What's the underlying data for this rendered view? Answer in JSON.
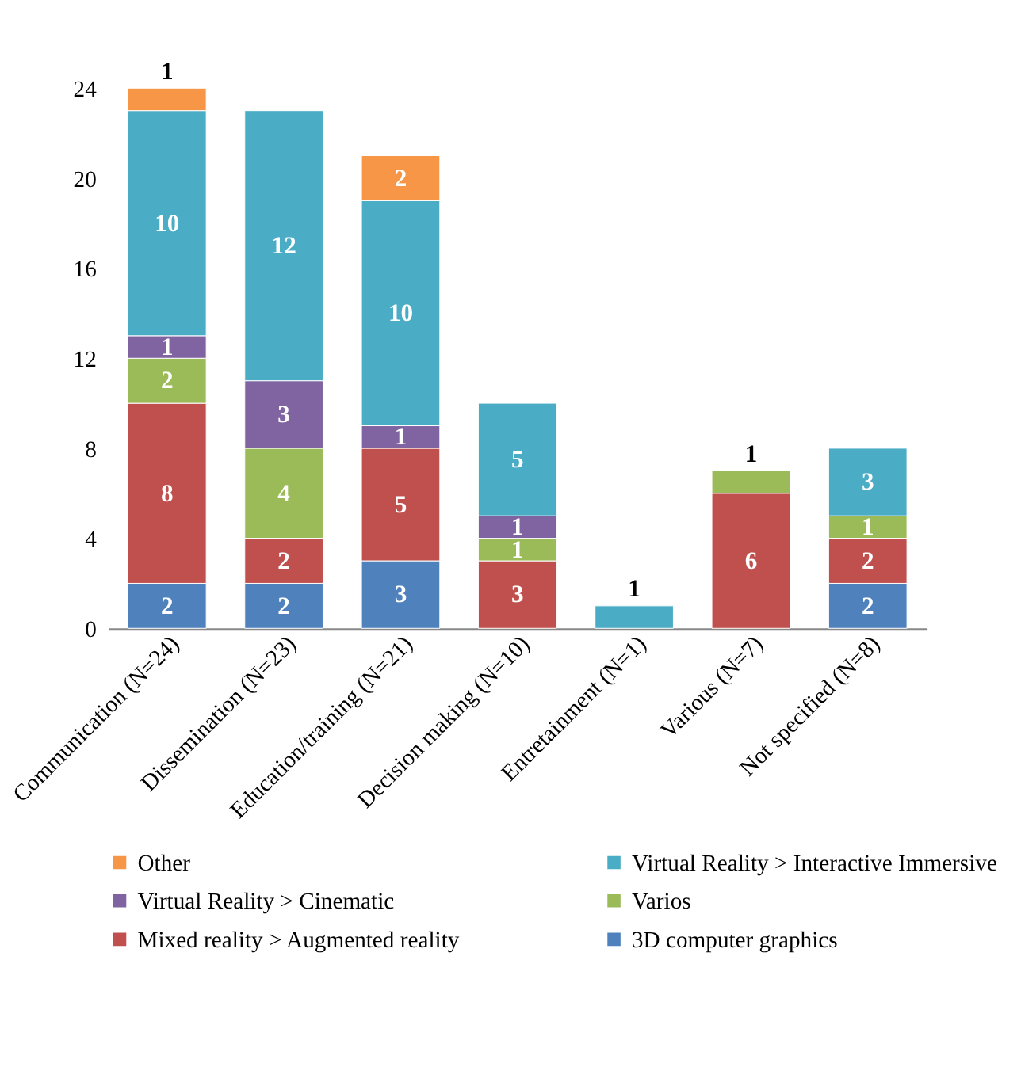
{
  "chart_data": {
    "type": "bar",
    "stacked": true,
    "data_labels": true,
    "legend": "bottom",
    "grid": false,
    "categories": [
      "Communication (N=24)",
      "Dissemination (N=23)",
      "Education/training (N=21)",
      "Decision making (N=10)",
      "Entretainment (N=1)",
      "Various (N=7)",
      "Not specified (N=8)"
    ],
    "ylim": [
      0,
      24
    ],
    "yticks": [
      0,
      4,
      8,
      12,
      16,
      20,
      24
    ],
    "series": [
      {
        "name": "3D computer graphics",
        "color": "#4f81bd",
        "values": [
          2,
          2,
          3,
          null,
          null,
          null,
          2
        ]
      },
      {
        "name": "Mixed reality > Augmented reality",
        "color": "#c0504d",
        "values": [
          8,
          2,
          5,
          3,
          null,
          6,
          2
        ]
      },
      {
        "name": "Varios",
        "color": "#9bbb59",
        "values": [
          2,
          4,
          null,
          1,
          null,
          1,
          1
        ]
      },
      {
        "name": "Virtual Reality > Cinematic",
        "color": "#8064a2",
        "values": [
          1,
          3,
          1,
          1,
          null,
          null,
          null
        ]
      },
      {
        "name": "Virtual Reality > Interactive Immersive",
        "color": "#4bacc6",
        "values": [
          10,
          12,
          10,
          5,
          1,
          null,
          3
        ]
      },
      {
        "name": "Other",
        "color": "#f79646",
        "values": [
          1,
          null,
          2,
          null,
          null,
          null,
          null
        ]
      }
    ]
  }
}
